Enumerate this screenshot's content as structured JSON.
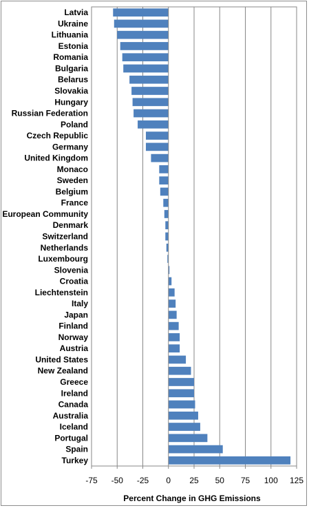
{
  "chart_data": {
    "type": "bar",
    "orientation": "horizontal",
    "categories": [
      "Latvia",
      "Ukraine",
      "Lithuania",
      "Estonia",
      "Romania",
      "Bulgaria",
      "Belarus",
      "Slovakia",
      "Hungary",
      "Russian Federation",
      "Poland",
      "Czech Republic",
      "Germany",
      "United Kingdom",
      "Monaco",
      "Sweden",
      "Belgium",
      "France",
      "European Community",
      "Denmark",
      "Switzerland",
      "Netherlands",
      "Luxembourg",
      "Slovenia",
      "Croatia",
      "Liechtenstein",
      "Italy",
      "Japan",
      "Finland",
      "Norway",
      "Austria",
      "United States",
      "New Zealand",
      "Greece",
      "Ireland",
      "Canada",
      "Australia",
      "Iceland",
      "Portugal",
      "Spain",
      "Turkey"
    ],
    "values": [
      -54,
      -53,
      -50,
      -47,
      -45,
      -44,
      -38,
      -36,
      -35,
      -34,
      -30,
      -22,
      -22,
      -17,
      -9,
      -9,
      -8,
      -5,
      -4,
      -3,
      -3,
      -2,
      -1,
      1,
      3,
      6,
      7,
      8,
      10,
      11,
      11,
      17,
      22,
      25,
      25,
      26,
      29,
      31,
      38,
      53,
      119
    ],
    "xlabel": "Percent Change in GHG Emissions",
    "ylabel": "",
    "xlim": [
      -75,
      125
    ],
    "xticks": [
      "-75",
      "-50",
      "-25",
      "0",
      "25",
      "50",
      "75",
      "100",
      "125"
    ],
    "grid": "vertical",
    "legend": "none",
    "bar_color": "#4F81BD",
    "gridline_color": "#878787"
  }
}
